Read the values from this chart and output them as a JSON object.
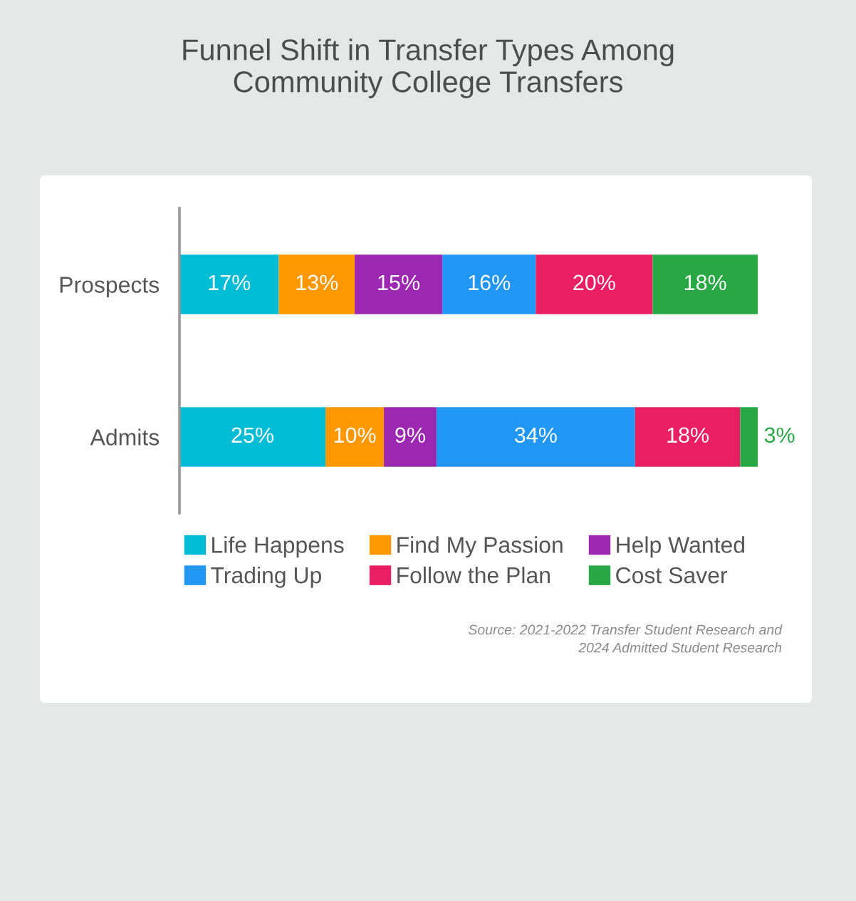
{
  "chart_data": {
    "type": "bar",
    "orientation": "horizontal",
    "stacked": true,
    "title": "Funnel Shift in Transfer Types Among\nCommunity College Transfers",
    "categories": [
      "Prospects",
      "Admits"
    ],
    "series": [
      {
        "name": "Life Happens",
        "color": "#00bcd4",
        "values": [
          17,
          25
        ],
        "value_labels": [
          "17%",
          "25%"
        ]
      },
      {
        "name": "Find My Passion",
        "color": "#ff9800",
        "values": [
          13,
          10
        ],
        "value_labels": [
          "13%",
          "10%"
        ]
      },
      {
        "name": "Help Wanted",
        "color": "#9c27b0",
        "values": [
          15,
          9
        ],
        "value_labels": [
          "15%",
          "9%"
        ]
      },
      {
        "name": "Trading Up",
        "color": "#2196f3",
        "values": [
          16,
          34
        ],
        "value_labels": [
          "16%",
          "34%"
        ]
      },
      {
        "name": "Follow the Plan",
        "color": "#e91e63",
        "values": [
          20,
          18
        ],
        "value_labels": [
          "20%",
          "18%"
        ]
      },
      {
        "name": "Cost Saver",
        "color": "#27a844",
        "values": [
          18,
          3
        ],
        "value_labels": [
          "18%",
          "3%"
        ]
      }
    ],
    "tick_labels": "y",
    "grid": false,
    "legend": "bottom",
    "annotations": [
      "Source: 2021-2022 Transfer Student Research and\n2024 Admitted Student Research"
    ]
  }
}
